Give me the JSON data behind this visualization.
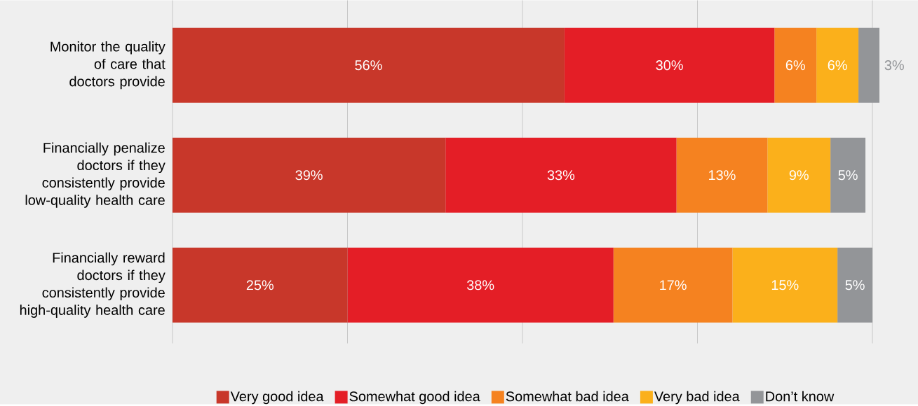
{
  "chart_data": {
    "type": "bar",
    "orientation": "horizontal",
    "stacked": true,
    "categories": [
      "Monitor the quality of care that doctors provide",
      "Financially penalize doctors if they consistently provide low-quality health care",
      "Financially reward doctors if they consistently provide high-quality health care"
    ],
    "series": [
      {
        "name": "Very good idea",
        "color": "#c8372a",
        "values": [
          56,
          39,
          25
        ],
        "value_labels": [
          "56%",
          "39%",
          "25%"
        ]
      },
      {
        "name": "Somewhat good idea",
        "color": "#e41e26",
        "values": [
          30,
          33,
          38
        ],
        "value_labels": [
          "30%",
          "33%",
          "38%"
        ]
      },
      {
        "name": "Somewhat bad idea",
        "color": "#f58220",
        "values": [
          6,
          13,
          17
        ],
        "value_labels": [
          "6%",
          "13%",
          "17%"
        ]
      },
      {
        "name": "Very bad idea",
        "color": "#fbb01b",
        "values": [
          6,
          9,
          15
        ],
        "value_labels": [
          "6%",
          "9%",
          "15%"
        ]
      },
      {
        "name": "Don’t know",
        "color": "#939598",
        "values": [
          3,
          5,
          5
        ],
        "value_labels": [
          "3%",
          "5%",
          "5%"
        ]
      }
    ],
    "xlim": [
      0,
      101
    ],
    "xticks": [
      {
        "value": 0,
        "label": null
      },
      {
        "value": 25,
        "label": null
      },
      {
        "value": 50,
        "label": null
      },
      {
        "value": 75,
        "label": null
      },
      {
        "value": 100,
        "label": null
      }
    ],
    "tick_labels": "y",
    "grid": "x",
    "legend": "bottom"
  }
}
